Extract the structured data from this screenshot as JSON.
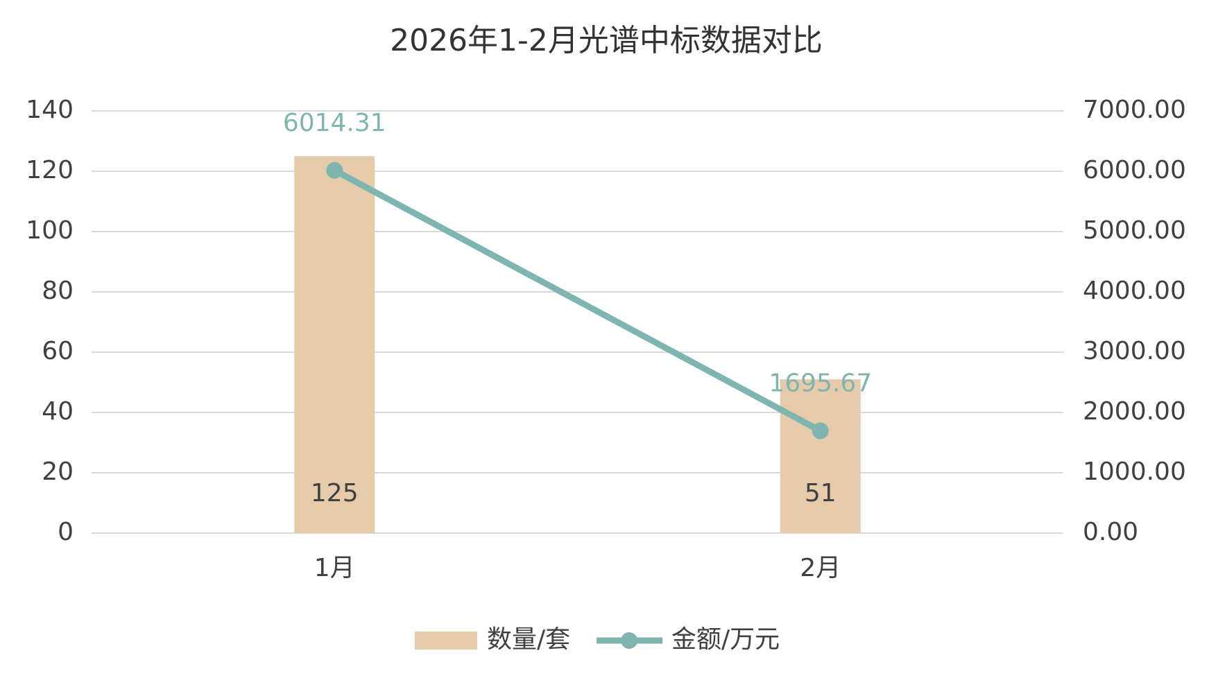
{
  "chart_data": {
    "type": "combo",
    "title": "2026年1-2月光谱中标数据对比",
    "categories": [
      "1月",
      "2月"
    ],
    "series": [
      {
        "name": "数量/套",
        "type": "bar",
        "color": "#e5cbaa",
        "values": [
          125,
          51
        ],
        "label_color": "#404040"
      },
      {
        "name": "金额/万元",
        "type": "line",
        "color": "#7fb5b0",
        "axis": "y2",
        "values": [
          6014.31,
          1695.67
        ],
        "label_color": "#7fb5b0"
      }
    ],
    "ylim": [
      0,
      140
    ],
    "yticks": [
      0,
      20,
      40,
      60,
      80,
      100,
      120,
      140
    ],
    "y2lim": [
      0,
      7000
    ],
    "y2ticks": [
      {
        "value": 0,
        "label": "0.00"
      },
      {
        "value": 1000,
        "label": "1000.00"
      },
      {
        "value": 2000,
        "label": "2000.00"
      },
      {
        "value": 3000,
        "label": "3000.00"
      },
      {
        "value": 4000,
        "label": "4000.00"
      },
      {
        "value": 5000,
        "label": "5000.00"
      },
      {
        "value": 6000,
        "label": "6000.00"
      },
      {
        "value": 7000,
        "label": "7000.00"
      }
    ],
    "grid": true,
    "legend": "bottom"
  }
}
